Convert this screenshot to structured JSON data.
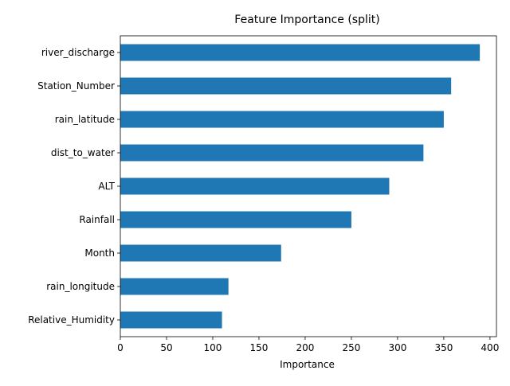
{
  "chart_data": {
    "type": "bar",
    "orientation": "horizontal",
    "title": "Feature Importance (split)",
    "xlabel": "Importance",
    "ylabel": "",
    "categories": [
      "river_discharge",
      "Station_Number",
      "rain_latitude",
      "dist_to_water",
      "ALT",
      "Rainfall",
      "Month",
      "rain_longitude",
      "Relative_Humidity"
    ],
    "values": [
      389,
      358,
      350,
      328,
      291,
      250,
      174,
      117,
      110
    ],
    "xlim": [
      0,
      407
    ],
    "xticks": [
      0,
      50,
      100,
      150,
      200,
      250,
      300,
      350,
      400
    ],
    "grid": false,
    "legend": "none",
    "bar_color": "#1f77b4"
  }
}
